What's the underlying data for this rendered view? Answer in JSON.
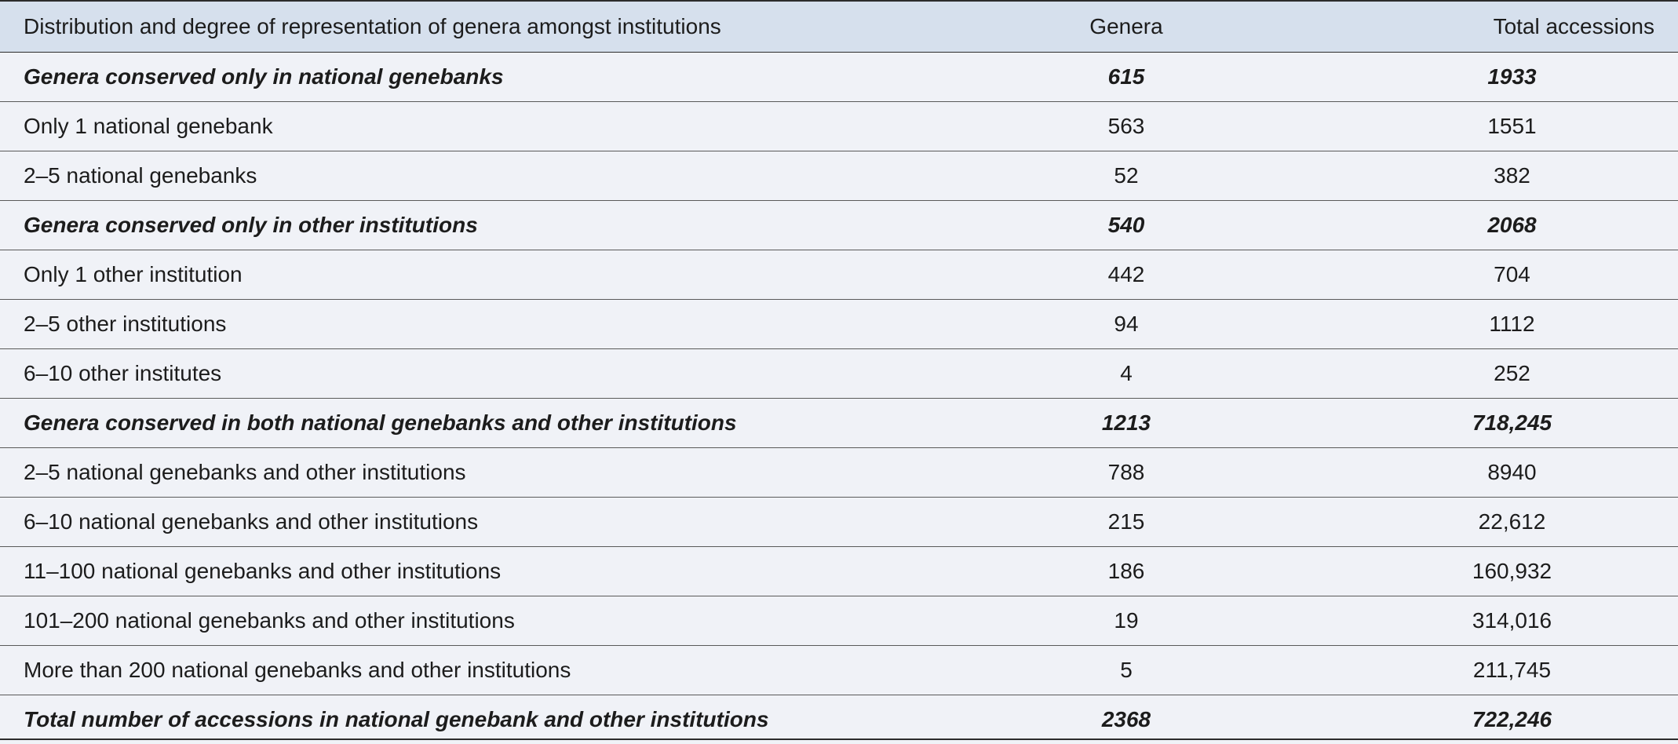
{
  "header": {
    "label": "Distribution and degree of representation of genera amongst institutions",
    "genera": "Genera",
    "total": "Total accessions"
  },
  "rows": [
    {
      "label": "Genera conserved only in national genebanks",
      "genera": "615",
      "total": "1933",
      "group": true
    },
    {
      "label": "Only 1 national genebank",
      "genera": "563",
      "total": "1551",
      "group": false
    },
    {
      "label": "2–5 national genebanks",
      "genera": "52",
      "total": "382",
      "group": false
    },
    {
      "label": "Genera conserved only in other institutions",
      "genera": "540",
      "total": "2068",
      "group": true
    },
    {
      "label": "Only 1 other institution",
      "genera": "442",
      "total": "704",
      "group": false
    },
    {
      "label": "2–5 other institutions",
      "genera": "94",
      "total": "1112",
      "group": false
    },
    {
      "label": "6–10 other institutes",
      "genera": "4",
      "total": "252",
      "group": false
    },
    {
      "label": "Genera conserved in both national genebanks and other institutions",
      "genera": "1213",
      "total": "718,245",
      "group": true
    },
    {
      "label": "2–5 national genebanks and other institutions",
      "genera": "788",
      "total": "8940",
      "group": false
    },
    {
      "label": "6–10 national genebanks and other institutions",
      "genera": "215",
      "total": "22,612",
      "group": false
    },
    {
      "label": "11–100 national genebanks and other institutions",
      "genera": "186",
      "total": "160,932",
      "group": false
    },
    {
      "label": "101–200 national genebanks and other institutions",
      "genera": "19",
      "total": "314,016",
      "group": false
    },
    {
      "label": "More than 200 national genebanks and other institutions",
      "genera": "5",
      "total": "211,745",
      "group": false
    },
    {
      "label": "Total number of accessions in national genebank and other institutions",
      "genera": "2368",
      "total": "722,246",
      "group": true
    }
  ]
}
